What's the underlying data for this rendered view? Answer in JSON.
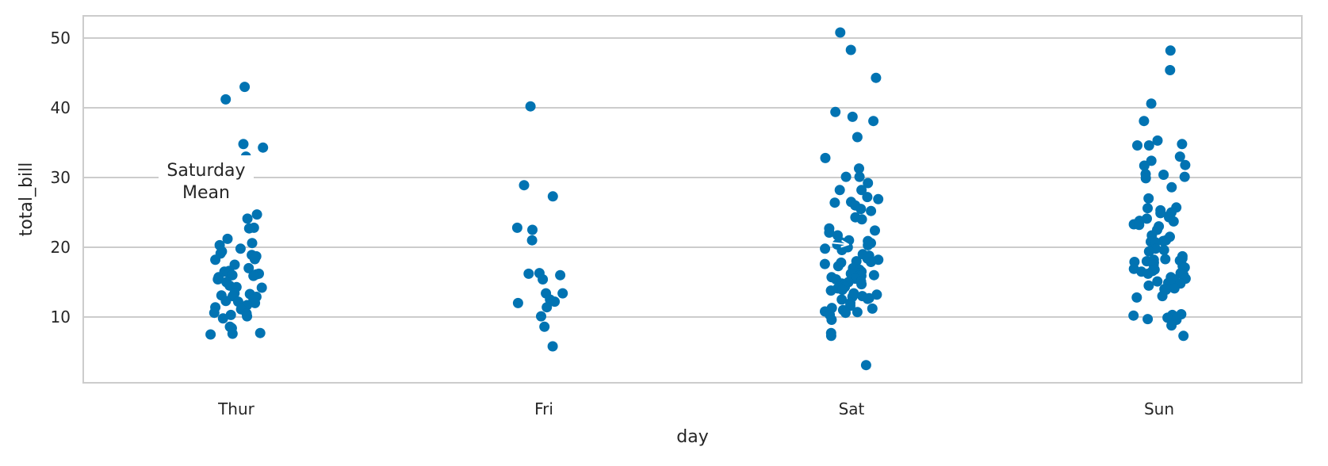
{
  "chart_data": {
    "type": "scatter",
    "subtype": "strip",
    "title": "",
    "xlabel": "day",
    "ylabel": "total_bill",
    "categories": [
      "Thur",
      "Fri",
      "Sat",
      "Sun"
    ],
    "ylim": [
      0,
      53
    ],
    "yticks": [
      10,
      20,
      30,
      40,
      50
    ],
    "grid": "horizontal",
    "point_color": "#0173b2",
    "series": [
      {
        "category": "Thur",
        "values": [
          43.0,
          41.2,
          34.8,
          34.3,
          33.0,
          28.5,
          28.2,
          24.7,
          24.1,
          22.8,
          22.7,
          21.2,
          20.6,
          20.3,
          19.8,
          19.4,
          19.1,
          18.9,
          18.7,
          18.3,
          18.2,
          17.5,
          17.0,
          16.6,
          16.5,
          16.3,
          16.2,
          16.1,
          16.0,
          16.0,
          15.9,
          15.7,
          15.4,
          15.0,
          14.5,
          14.3,
          14.2,
          13.4,
          13.3,
          13.1,
          13.0,
          12.9,
          12.5,
          12.3,
          12.2,
          12.0,
          11.7,
          11.4,
          11.1,
          10.6,
          10.5,
          10.3,
          10.1,
          9.8,
          8.6,
          8.5,
          8.4,
          7.7,
          7.6,
          7.5
        ]
      },
      {
        "category": "Fri",
        "values": [
          40.2,
          28.9,
          27.3,
          22.8,
          22.5,
          21.0,
          16.3,
          16.2,
          16.0,
          15.4,
          13.4,
          13.4,
          12.5,
          12.2,
          12.0,
          11.4,
          10.1,
          8.6,
          5.8
        ]
      },
      {
        "category": "Sat",
        "values": [
          50.8,
          48.3,
          44.3,
          39.4,
          38.7,
          38.1,
          35.8,
          32.8,
          31.3,
          30.1,
          30.1,
          29.2,
          28.2,
          28.2,
          27.2,
          26.9,
          26.5,
          26.4,
          26.0,
          25.5,
          25.2,
          24.3,
          24.0,
          22.7,
          22.4,
          22.1,
          21.7,
          21.0,
          20.9,
          20.7,
          20.6,
          20.4,
          20.3,
          20.1,
          20.0,
          19.8,
          19.6,
          19.0,
          18.8,
          18.4,
          18.2,
          18.0,
          17.9,
          17.8,
          17.6,
          17.3,
          17.0,
          16.8,
          16.5,
          16.3,
          16.2,
          16.0,
          16.0,
          15.9,
          15.7,
          15.5,
          15.4,
          15.1,
          15.0,
          14.8,
          14.7,
          14.5,
          14.3,
          14.1,
          13.9,
          13.8,
          13.4,
          13.2,
          13.0,
          12.9,
          12.7,
          12.6,
          12.5,
          12.0,
          11.6,
          11.3,
          11.2,
          11.0,
          10.8,
          10.7,
          10.6,
          10.3,
          9.6,
          7.7,
          7.3,
          3.1
        ]
      },
      {
        "category": "Sun",
        "values": [
          48.2,
          45.4,
          40.6,
          38.1,
          35.3,
          34.8,
          34.6,
          34.6,
          33.0,
          32.4,
          31.8,
          31.7,
          30.5,
          30.4,
          30.1,
          29.9,
          28.6,
          27.0,
          25.7,
          25.6,
          25.3,
          25.0,
          24.9,
          24.6,
          24.3,
          24.1,
          23.8,
          23.7,
          23.3,
          23.2,
          23.0,
          22.5,
          21.7,
          21.5,
          21.0,
          20.9,
          20.8,
          20.7,
          19.8,
          19.6,
          19.4,
          18.7,
          18.4,
          18.3,
          18.2,
          18.1,
          18.0,
          17.9,
          17.8,
          17.5,
          17.3,
          17.1,
          16.9,
          16.8,
          16.6,
          16.5,
          16.3,
          16.2,
          16.0,
          15.7,
          15.5,
          15.4,
          15.1,
          14.9,
          14.8,
          14.5,
          14.1,
          14.0,
          13.9,
          13.0,
          12.8,
          10.4,
          10.3,
          10.2,
          9.9,
          9.7,
          9.6,
          8.8,
          7.3
        ]
      }
    ],
    "annotation": {
      "text_line1": "Saturday",
      "text_line2": "Mean",
      "target_category": "Sat",
      "target_value": 20.4
    }
  }
}
